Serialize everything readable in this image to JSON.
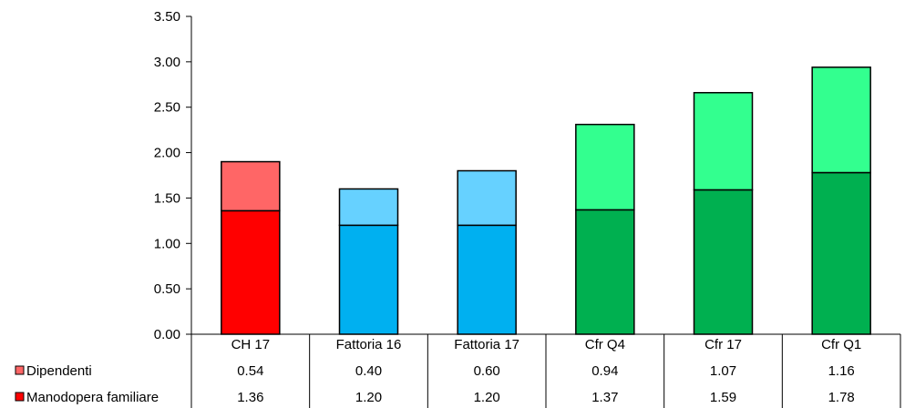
{
  "chart_data": {
    "type": "bar",
    "stacked": true,
    "categories": [
      "CH 17",
      "Fattoria 16",
      "Fattoria 17",
      "Cfr Q4",
      "Cfr 17",
      "Cfr Q1"
    ],
    "series": [
      {
        "name": "Dipendenti",
        "values": [
          0.54,
          0.4,
          0.6,
          0.94,
          1.07,
          1.16
        ],
        "value_labels": [
          "0.54",
          "0.40",
          "0.60",
          "0.94",
          "1.07",
          "1.16"
        ],
        "legend_color": "#FF6666",
        "colors": [
          "#FF6666",
          "#66D1FF",
          "#66D1FF",
          "#33FF8F",
          "#33FF8F",
          "#33FF8F"
        ]
      },
      {
        "name": "Manodopera familiare",
        "values": [
          1.36,
          1.2,
          1.2,
          1.37,
          1.59,
          1.78
        ],
        "value_labels": [
          "1.36",
          "1.20",
          "1.20",
          "1.37",
          "1.59",
          "1.78"
        ],
        "legend_color": "#FF0000",
        "colors": [
          "#FF0000",
          "#00B0F0",
          "#00B0F0",
          "#00B050",
          "#00B050",
          "#00B050"
        ]
      }
    ],
    "stack_order": [
      "Manodopera familiare",
      "Dipendenti"
    ],
    "ylim": [
      0,
      3.5
    ],
    "yticks": [
      "0.00",
      "0.50",
      "1.00",
      "1.50",
      "2.00",
      "2.50",
      "3.00",
      "3.50"
    ],
    "xlabel": "",
    "ylabel": "",
    "title": "",
    "grid": false,
    "legend": "data-table-left",
    "data_table": true
  }
}
